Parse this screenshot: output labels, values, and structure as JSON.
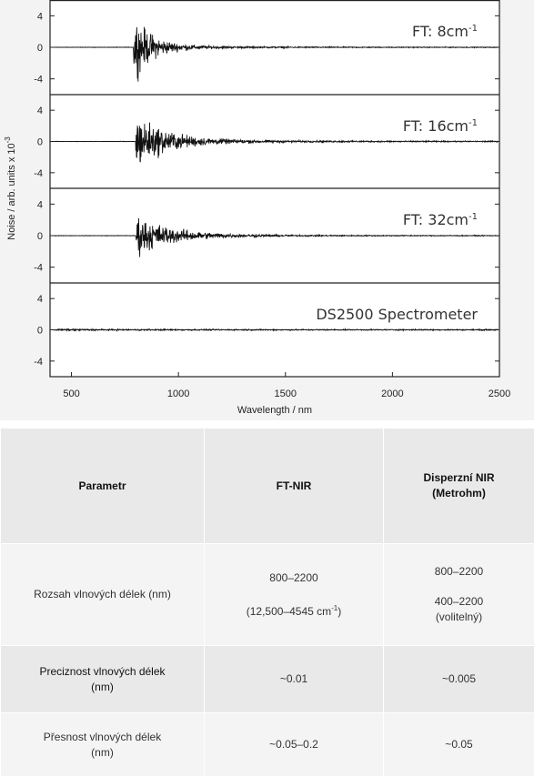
{
  "chart_data": {
    "type": "line",
    "xlabel": "Wavelength / nm",
    "ylabel": "Noise / arb. units x 10",
    "ylabel_exp": "-3",
    "xlim": [
      400,
      2500
    ],
    "x_ticks": [
      500,
      1000,
      1500,
      2000,
      2500
    ],
    "panels": [
      {
        "label": "FT: 8cm",
        "label_sup": "-1",
        "ylim": [
          -6,
          6
        ],
        "y_ticks": [
          4,
          0,
          -4
        ],
        "noise_start": 790,
        "amplitude": 5.5,
        "decay": 90,
        "floor": 0.25
      },
      {
        "label": "FT: 16cm",
        "label_sup": "-1",
        "ylim": [
          -6,
          6
        ],
        "y_ticks": [
          4,
          0,
          -4
        ],
        "noise_start": 800,
        "amplitude": 4.8,
        "decay": 140,
        "floor": 0.35
      },
      {
        "label": "FT: 32cm",
        "label_sup": "-1",
        "ylim": [
          -6,
          6
        ],
        "y_ticks": [
          4,
          0,
          -4
        ],
        "noise_start": 800,
        "amplitude": 3.5,
        "decay": 160,
        "floor": 0.25
      },
      {
        "label": "DS2500 Spectrometer",
        "label_sup": "",
        "ylim": [
          -6,
          6
        ],
        "y_ticks": [
          4,
          0,
          -4
        ],
        "noise_start": 400,
        "amplitude": 0.08,
        "decay": 100000,
        "floor": 0.08
      }
    ]
  },
  "table": {
    "headers": [
      {
        "line1": "Parametr",
        "line2": ""
      },
      {
        "line1": "FT-NIR",
        "line2": ""
      },
      {
        "line1": "Disperzní NIR",
        "line2": "(Metrohm)"
      }
    ],
    "row1": {
      "param": "Rozsah vlnových délek (nm)",
      "ft_main": "800–2200",
      "ft_sub": "(12,500–4545 cm",
      "ft_sub_sup": "-1",
      "ft_sub_end": ")",
      "disp_main": "800–2200",
      "disp_sub1": "400–2200",
      "disp_sub2": "(volitelný)"
    },
    "row2": {
      "param1": "Preciznost vlnových délek",
      "param2": "(nm)",
      "ft": "~0.01",
      "disp": "~0.005"
    },
    "row3": {
      "param1": "Přesnost vlnových délek",
      "param2": "(nm)",
      "ft": "~0.05–0.2",
      "disp": "~0.05"
    }
  }
}
